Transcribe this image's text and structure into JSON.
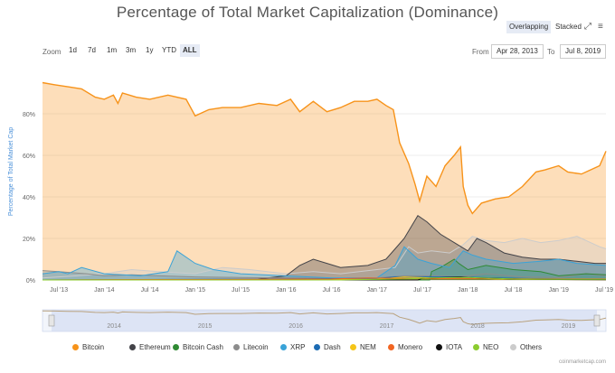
{
  "title": "Percentage of Total Market Capitalization (Dominance)",
  "controls": {
    "mode_overlapping": "Overlapping",
    "mode_stacked": "Stacked",
    "zoom_label": "Zoom",
    "zoom_options": [
      "1d",
      "7d",
      "1m",
      "3m",
      "1y",
      "YTD",
      "ALL"
    ],
    "zoom_active": "ALL",
    "from_label": "From",
    "from_value": "Apr 28, 2013",
    "to_label": "To",
    "to_value": "Jul 8, 2019"
  },
  "credit": "coinmarketcap.com",
  "chart_data": {
    "type": "area",
    "mode": "overlapping",
    "title": "Percentage of Total Market Capitalization (Dominance)",
    "ylabel": "Percentage of Total Market Cap",
    "ylim": [
      0,
      100
    ],
    "y_ticks": [
      "0%",
      "20%",
      "40%",
      "60%",
      "80%"
    ],
    "x_ticks": [
      "Jul '13",
      "Jan '14",
      "Jul '14",
      "Jan '15",
      "Jul '15",
      "Jan '16",
      "Jul '16",
      "Jan '17",
      "Jul '17",
      "Jan '18",
      "Jul '18",
      "Jan '19",
      "Jul '19"
    ],
    "x_tick_pos": [
      2013.5,
      2014.0,
      2014.5,
      2015.0,
      2015.5,
      2016.0,
      2016.5,
      2017.0,
      2017.5,
      2018.0,
      2018.5,
      2019.0,
      2019.5
    ],
    "xlim": [
      2013.32,
      2019.52
    ],
    "navigator_years": [
      "2014",
      "2015",
      "2016",
      "2017",
      "2018",
      "2019"
    ],
    "legend_position": "bottom",
    "grid": true,
    "series": [
      {
        "name": "Bitcoin",
        "color": "#f7931a",
        "x": [
          2013.32,
          2013.45,
          2013.6,
          2013.75,
          2013.9,
          2014.0,
          2014.1,
          2014.15,
          2014.2,
          2014.35,
          2014.5,
          2014.7,
          2014.9,
          2015.0,
          2015.15,
          2015.3,
          2015.5,
          2015.7,
          2015.9,
          2016.05,
          2016.15,
          2016.3,
          2016.45,
          2016.6,
          2016.75,
          2016.9,
          2017.0,
          2017.1,
          2017.18,
          2017.25,
          2017.35,
          2017.42,
          2017.47,
          2017.55,
          2017.65,
          2017.75,
          2017.85,
          2017.92,
          2017.95,
          2018.0,
          2018.05,
          2018.15,
          2018.3,
          2018.45,
          2018.6,
          2018.75,
          2018.85,
          2019.0,
          2019.1,
          2019.25,
          2019.35,
          2019.45,
          2019.52
        ],
        "values": [
          95,
          94,
          93,
          92,
          88,
          87,
          89,
          85,
          90,
          88,
          87,
          89,
          87,
          79,
          82,
          83,
          83,
          85,
          84,
          87,
          81,
          86,
          81,
          83,
          86,
          86,
          87,
          84,
          82,
          66,
          56,
          46,
          38,
          50,
          45,
          55,
          60,
          64,
          45,
          36,
          32,
          37,
          39,
          40,
          45,
          52,
          53,
          55,
          52,
          51,
          53,
          55,
          62
        ]
      },
      {
        "name": "Ethereum",
        "color": "#434348",
        "x": [
          2013.32,
          2015.6,
          2016.0,
          2016.15,
          2016.3,
          2016.45,
          2016.6,
          2016.9,
          2017.1,
          2017.2,
          2017.3,
          2017.45,
          2017.55,
          2017.7,
          2017.85,
          2018.0,
          2018.1,
          2018.2,
          2018.4,
          2018.6,
          2018.8,
          2019.0,
          2019.2,
          2019.4,
          2019.52
        ],
        "values": [
          0,
          0,
          2,
          7,
          10,
          8,
          6,
          7,
          10,
          15,
          20,
          31,
          28,
          22,
          18,
          14,
          20,
          18,
          13,
          11,
          10,
          10,
          9,
          8,
          8
        ]
      },
      {
        "name": "Bitcoin Cash",
        "color": "#2f8a33",
        "x": [
          2013.32,
          2017.58,
          2017.6,
          2017.7,
          2017.85,
          2017.9,
          2018.0,
          2018.2,
          2018.5,
          2018.8,
          2019.0,
          2019.3,
          2019.52
        ],
        "values": [
          0,
          0,
          4,
          6,
          10,
          8,
          5,
          7,
          5,
          4,
          2,
          3,
          2.5
        ]
      },
      {
        "name": "Litecoin",
        "color": "#8c8c8c",
        "x": [
          2013.32,
          2013.5,
          2013.8,
          2014.0,
          2014.3,
          2014.6,
          2015.0,
          2015.5,
          2016.0,
          2016.5,
          2017.0,
          2017.3,
          2017.6,
          2017.9,
          2018.2,
          2018.6,
          2019.0,
          2019.3,
          2019.52
        ],
        "values": [
          4.5,
          4,
          3,
          2,
          2.5,
          2,
          1.5,
          1.2,
          1,
          0.8,
          1,
          2,
          2,
          1.5,
          3,
          1.5,
          1.2,
          3,
          2
        ]
      },
      {
        "name": "XRP",
        "color": "#3aa3d8",
        "x": [
          2013.32,
          2013.5,
          2013.6,
          2013.75,
          2014.0,
          2014.4,
          2014.7,
          2014.8,
          2015.0,
          2015.2,
          2015.5,
          2016.0,
          2016.5,
          2017.0,
          2017.2,
          2017.3,
          2017.45,
          2017.6,
          2017.8,
          2017.95,
          2018.05,
          2018.2,
          2018.5,
          2018.8,
          2019.0,
          2019.2,
          2019.52
        ],
        "values": [
          3,
          4,
          3,
          6,
          3,
          2,
          4,
          14,
          8,
          5,
          3,
          2,
          1,
          1,
          7,
          16,
          10,
          8,
          6,
          14,
          12,
          10,
          8,
          9,
          10,
          8,
          7
        ]
      },
      {
        "name": "Dash",
        "color": "#1c6bb3",
        "x": [
          2013.32,
          2015.0,
          2016.0,
          2017.0,
          2017.2,
          2017.5,
          2017.9,
          2018.3,
          2018.9,
          2019.52
        ],
        "values": [
          0,
          0.3,
          0.5,
          0.8,
          1.5,
          1.5,
          1.5,
          1,
          0.5,
          0.4
        ]
      },
      {
        "name": "NEM",
        "color": "#f5c518",
        "x": [
          2013.32,
          2015.3,
          2016.0,
          2017.0,
          2017.3,
          2017.6,
          2018.0,
          2018.3,
          2019.0,
          2019.52
        ],
        "values": [
          0,
          0.1,
          0.2,
          0.3,
          1.5,
          1,
          1.2,
          0.5,
          0.2,
          0.1
        ]
      },
      {
        "name": "Monero",
        "color": "#f26522",
        "x": [
          2013.32,
          2014.5,
          2015.5,
          2016.5,
          2016.9,
          2017.5,
          2018.0,
          2018.5,
          2019.0,
          2019.52
        ],
        "values": [
          0,
          0.2,
          0.3,
          0.5,
          1,
          0.6,
          0.8,
          0.6,
          0.5,
          0.5
        ]
      },
      {
        "name": "IOTA",
        "color": "#111111",
        "x": [
          2013.32,
          2017.45,
          2017.5,
          2017.9,
          2018.0,
          2018.5,
          2019.0,
          2019.52
        ],
        "values": [
          0,
          0,
          0.8,
          1.5,
          1.2,
          0.5,
          0.2,
          0.1
        ]
      },
      {
        "name": "NEO",
        "color": "#8ccc2f",
        "x": [
          2013.32,
          2016.6,
          2017.3,
          2017.6,
          2018.0,
          2018.5,
          2019.0,
          2019.52
        ],
        "values": [
          0,
          0,
          0.5,
          1,
          1.2,
          0.5,
          0.3,
          0.3
        ]
      },
      {
        "name": "Others",
        "color": "#cccccc",
        "x": [
          2013.32,
          2013.7,
          2014.0,
          2014.3,
          2014.6,
          2015.0,
          2015.3,
          2015.6,
          2016.0,
          2016.3,
          2016.6,
          2017.0,
          2017.2,
          2017.35,
          2017.45,
          2017.6,
          2017.8,
          2017.95,
          2018.05,
          2018.2,
          2018.4,
          2018.6,
          2018.8,
          2019.0,
          2019.2,
          2019.35,
          2019.45,
          2019.52
        ],
        "values": [
          1,
          2,
          3,
          5,
          4,
          3,
          6,
          5,
          3,
          4,
          3,
          5,
          6,
          16,
          13,
          14,
          13,
          17,
          21,
          19,
          18,
          20,
          18,
          19,
          21,
          18,
          16,
          15
        ]
      }
    ]
  }
}
